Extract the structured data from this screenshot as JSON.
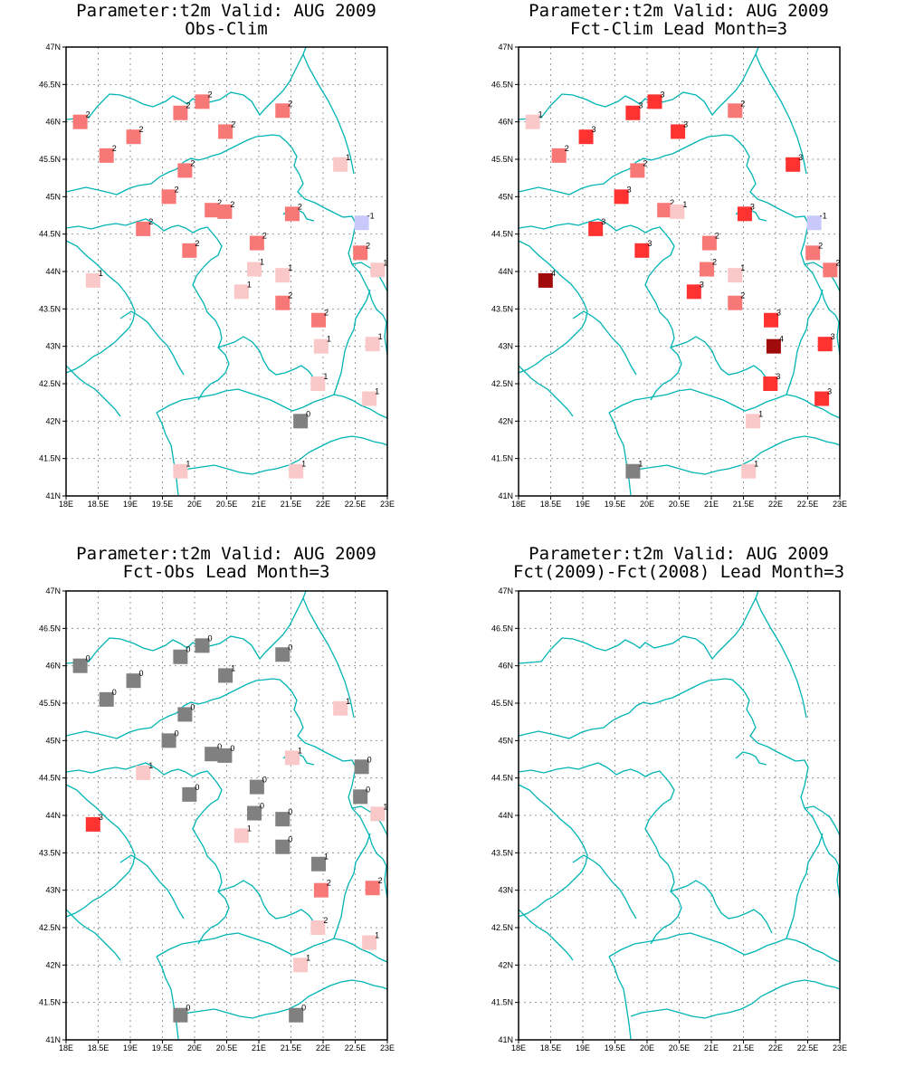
{
  "colors": {
    "border": "#00b4b4",
    "grid": "#9a9a9a",
    "value_colors": {
      "-1": "#c8c8fa",
      "0": "#808080",
      "1": "#fac8c8",
      "2": "#f87878",
      "3": "#ff3232",
      "4": "#a00a0a"
    }
  },
  "axes": {
    "x_ticks": [
      "18E",
      "18.5E",
      "19E",
      "19.5E",
      "20E",
      "20.5E",
      "21E",
      "21.5E",
      "22E",
      "22.5E",
      "23E"
    ],
    "y_ticks": [
      "47N",
      "46.5N",
      "46N",
      "45.5N",
      "45N",
      "44.5N",
      "44N",
      "43.5N",
      "43N",
      "42.5N",
      "42N",
      "41.5N",
      "41N"
    ],
    "lon_range": [
      18,
      23
    ],
    "lat_range": [
      41,
      47
    ]
  },
  "chart_data": [
    {
      "type": "scatter",
      "title_line1": "Parameter:t2m Valid: AUG 2009",
      "title_line2": "Obs-Clim",
      "stations": [
        {
          "lon": 18.22,
          "lat": 46.0,
          "v": 2
        },
        {
          "lon": 18.63,
          "lat": 45.55,
          "v": 2
        },
        {
          "lon": 19.05,
          "lat": 45.8,
          "v": 2
        },
        {
          "lon": 19.78,
          "lat": 46.12,
          "v": 2
        },
        {
          "lon": 20.12,
          "lat": 46.27,
          "v": 2
        },
        {
          "lon": 20.48,
          "lat": 45.87,
          "v": 2
        },
        {
          "lon": 21.37,
          "lat": 46.15,
          "v": 2
        },
        {
          "lon": 19.85,
          "lat": 45.35,
          "v": 2
        },
        {
          "lon": 19.6,
          "lat": 45.0,
          "v": 2
        },
        {
          "lon": 20.27,
          "lat": 44.82,
          "v": 2
        },
        {
          "lon": 20.47,
          "lat": 44.8,
          "v": 2
        },
        {
          "lon": 21.52,
          "lat": 44.77,
          "v": 2
        },
        {
          "lon": 19.2,
          "lat": 44.57,
          "v": 2
        },
        {
          "lon": 19.92,
          "lat": 44.28,
          "v": 2
        },
        {
          "lon": 20.97,
          "lat": 44.38,
          "v": 2
        },
        {
          "lon": 20.93,
          "lat": 44.03,
          "v": 1
        },
        {
          "lon": 21.37,
          "lat": 43.95,
          "v": 1
        },
        {
          "lon": 20.73,
          "lat": 43.73,
          "v": 1
        },
        {
          "lon": 21.37,
          "lat": 43.58,
          "v": 2
        },
        {
          "lon": 18.42,
          "lat": 43.88,
          "v": 1
        },
        {
          "lon": 22.27,
          "lat": 45.43,
          "v": 1
        },
        {
          "lon": 22.6,
          "lat": 44.65,
          "v": -1
        },
        {
          "lon": 22.58,
          "lat": 44.25,
          "v": 2
        },
        {
          "lon": 22.85,
          "lat": 44.02,
          "v": 1
        },
        {
          "lon": 21.93,
          "lat": 43.35,
          "v": 2
        },
        {
          "lon": 21.97,
          "lat": 43.0,
          "v": 1
        },
        {
          "lon": 22.77,
          "lat": 43.03,
          "v": 1
        },
        {
          "lon": 21.92,
          "lat": 42.5,
          "v": 1
        },
        {
          "lon": 22.72,
          "lat": 42.3,
          "v": 1
        },
        {
          "lon": 21.65,
          "lat": 42.0,
          "v": 0
        },
        {
          "lon": 19.78,
          "lat": 41.33,
          "v": 1
        },
        {
          "lon": 21.58,
          "lat": 41.33,
          "v": 1
        }
      ]
    },
    {
      "type": "scatter",
      "title_line1": "Parameter:t2m Valid: AUG 2009",
      "title_line2": "Fct-Clim Lead Month=3",
      "stations": [
        {
          "lon": 18.22,
          "lat": 46.0,
          "v": 1
        },
        {
          "lon": 18.63,
          "lat": 45.55,
          "v": 2
        },
        {
          "lon": 19.05,
          "lat": 45.8,
          "v": 3
        },
        {
          "lon": 19.78,
          "lat": 46.12,
          "v": 3
        },
        {
          "lon": 20.12,
          "lat": 46.27,
          "v": 3
        },
        {
          "lon": 20.48,
          "lat": 45.87,
          "v": 3
        },
        {
          "lon": 21.37,
          "lat": 46.15,
          "v": 2
        },
        {
          "lon": 19.85,
          "lat": 45.35,
          "v": 2
        },
        {
          "lon": 19.6,
          "lat": 45.0,
          "v": 3
        },
        {
          "lon": 20.27,
          "lat": 44.82,
          "v": 2
        },
        {
          "lon": 20.47,
          "lat": 44.8,
          "v": 1
        },
        {
          "lon": 21.52,
          "lat": 44.77,
          "v": 3
        },
        {
          "lon": 19.2,
          "lat": 44.57,
          "v": 3
        },
        {
          "lon": 19.92,
          "lat": 44.28,
          "v": 3
        },
        {
          "lon": 20.97,
          "lat": 44.38,
          "v": 2
        },
        {
          "lon": 20.93,
          "lat": 44.03,
          "v": 2
        },
        {
          "lon": 21.37,
          "lat": 43.95,
          "v": 1
        },
        {
          "lon": 20.73,
          "lat": 43.73,
          "v": 3
        },
        {
          "lon": 21.37,
          "lat": 43.58,
          "v": 2
        },
        {
          "lon": 18.42,
          "lat": 43.88,
          "v": 4
        },
        {
          "lon": 22.27,
          "lat": 45.43,
          "v": 3
        },
        {
          "lon": 22.6,
          "lat": 44.65,
          "v": -1
        },
        {
          "lon": 22.58,
          "lat": 44.25,
          "v": 2
        },
        {
          "lon": 22.85,
          "lat": 44.02,
          "v": 2
        },
        {
          "lon": 21.93,
          "lat": 43.35,
          "v": 3
        },
        {
          "lon": 21.97,
          "lat": 43.0,
          "v": 4
        },
        {
          "lon": 22.77,
          "lat": 43.03,
          "v": 3
        },
        {
          "lon": 21.92,
          "lat": 42.5,
          "v": 3
        },
        {
          "lon": 22.72,
          "lat": 42.3,
          "v": 3
        },
        {
          "lon": 21.65,
          "lat": 42.0,
          "v": 1
        },
        {
          "lon": 19.78,
          "lat": 41.33,
          "v": 1,
          "c": 0
        },
        {
          "lon": 21.58,
          "lat": 41.33,
          "v": 1
        }
      ]
    },
    {
      "type": "scatter",
      "title_line1": "Parameter:t2m Valid: AUG 2009",
      "title_line2": "Fct-Obs Lead Month=3",
      "stations": [
        {
          "lon": 18.22,
          "lat": 46.0,
          "v": 0
        },
        {
          "lon": 18.63,
          "lat": 45.55,
          "v": 0
        },
        {
          "lon": 19.05,
          "lat": 45.8,
          "v": 0
        },
        {
          "lon": 19.78,
          "lat": 46.12,
          "v": 0
        },
        {
          "lon": 20.12,
          "lat": 46.27,
          "v": 0
        },
        {
          "lon": 20.48,
          "lat": 45.87,
          "v": 1,
          "c": 0
        },
        {
          "lon": 21.37,
          "lat": 46.15,
          "v": 0
        },
        {
          "lon": 19.85,
          "lat": 45.35,
          "v": 0
        },
        {
          "lon": 19.6,
          "lat": 45.0,
          "v": 0
        },
        {
          "lon": 20.27,
          "lat": 44.82,
          "v": 0
        },
        {
          "lon": 20.47,
          "lat": 44.8,
          "v": 0
        },
        {
          "lon": 21.52,
          "lat": 44.77,
          "v": 1
        },
        {
          "lon": 19.2,
          "lat": 44.57,
          "v": 1
        },
        {
          "lon": 19.92,
          "lat": 44.28,
          "v": 0
        },
        {
          "lon": 20.97,
          "lat": 44.38,
          "v": 0
        },
        {
          "lon": 20.93,
          "lat": 44.03,
          "v": 0
        },
        {
          "lon": 21.37,
          "lat": 43.95,
          "v": 0
        },
        {
          "lon": 20.73,
          "lat": 43.73,
          "v": 1
        },
        {
          "lon": 21.37,
          "lat": 43.58,
          "v": 0
        },
        {
          "lon": 18.42,
          "lat": 43.88,
          "v": 3
        },
        {
          "lon": 22.27,
          "lat": 45.43,
          "v": 1
        },
        {
          "lon": 22.6,
          "lat": 44.65,
          "v": 0
        },
        {
          "lon": 22.58,
          "lat": 44.25,
          "v": 0
        },
        {
          "lon": 22.85,
          "lat": 44.02,
          "v": 1
        },
        {
          "lon": 21.93,
          "lat": 43.35,
          "v": 1,
          "c": 0
        },
        {
          "lon": 21.97,
          "lat": 43.0,
          "v": 2
        },
        {
          "lon": 22.77,
          "lat": 43.03,
          "v": 2
        },
        {
          "lon": 21.92,
          "lat": 42.5,
          "v": 2,
          "c": 1
        },
        {
          "lon": 22.72,
          "lat": 42.3,
          "v": 1
        },
        {
          "lon": 21.65,
          "lat": 42.0,
          "v": 1
        },
        {
          "lon": 19.78,
          "lat": 41.33,
          "v": 0
        },
        {
          "lon": 21.58,
          "lat": 41.33,
          "v": 0
        }
      ]
    },
    {
      "type": "scatter",
      "title_line1": "Parameter:t2m Valid: AUG 2009",
      "title_line2": "Fct(2009)-Fct(2008) Lead Month=3",
      "stations": []
    }
  ]
}
